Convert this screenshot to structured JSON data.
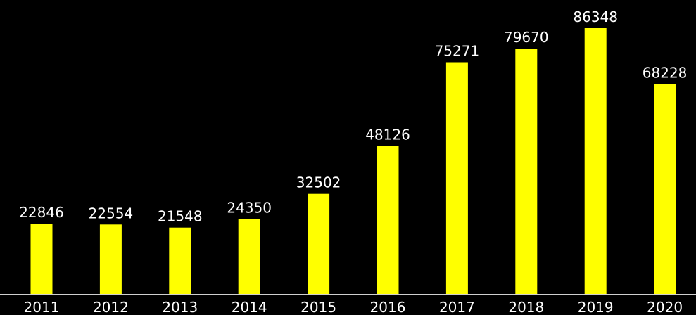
{
  "chart_data": {
    "type": "bar",
    "categories": [
      "2011",
      "2012",
      "2013",
      "2014",
      "2015",
      "2016",
      "2017",
      "2018",
      "2019",
      "2020"
    ],
    "values": [
      22846,
      22554,
      21548,
      24350,
      32502,
      48126,
      75271,
      79670,
      86348,
      68228
    ],
    "title": "",
    "xlabel": "",
    "ylabel": "",
    "ylim": [
      0,
      86348
    ],
    "grid": false,
    "legend": "none",
    "data_labels": true
  },
  "colors": {
    "background": "#000000",
    "bar": "#ffff00",
    "axis": "#cfcfcf",
    "text": "#ffffff"
  }
}
